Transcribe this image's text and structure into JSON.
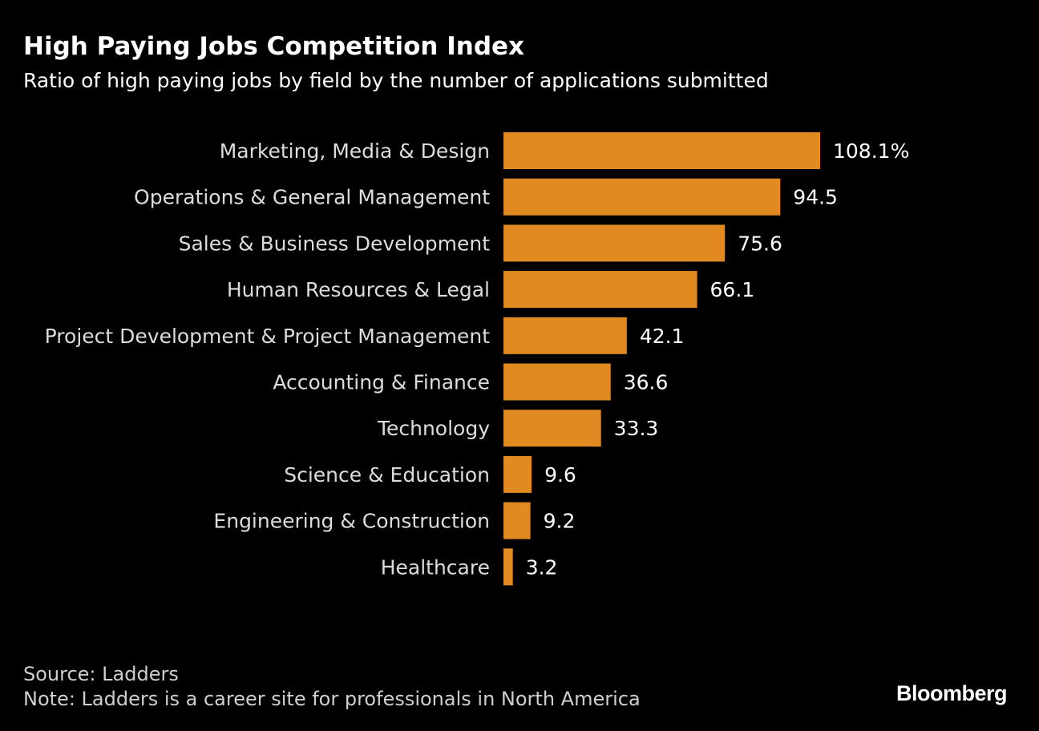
{
  "chart_data": {
    "type": "bar",
    "orientation": "horizontal",
    "title": "High Paying Jobs Competition Index",
    "subtitle": "Ratio of high paying jobs by field by the number of applications submitted",
    "categories": [
      "Marketing, Media & Design",
      "Operations & General Management",
      "Sales & Business Development",
      "Human Resources & Legal",
      "Project Development & Project Management",
      "Accounting & Finance",
      "Technology",
      "Science & Education",
      "Engineering & Construction",
      "Healthcare"
    ],
    "values": [
      108.1,
      94.5,
      75.6,
      66.1,
      42.1,
      36.6,
      33.3,
      9.6,
      9.2,
      3.2
    ],
    "value_labels": [
      "108.1%",
      "94.5",
      "75.6",
      "66.1",
      "42.1",
      "36.6",
      "33.3",
      "9.6",
      "9.2",
      "3.2"
    ],
    "xlim": [
      0,
      108.1
    ],
    "grid": false,
    "legend": "none",
    "bar_color": "#e08a21",
    "source": "Source: Ladders",
    "note": "Note: Ladders is a career site for professionals in North America"
  },
  "branding": {
    "logo_text": "Bloomberg"
  },
  "colors": {
    "background": "#000000",
    "bar": "#e08a21",
    "text": "#ffffff",
    "category_text": "#dcdcdc"
  }
}
